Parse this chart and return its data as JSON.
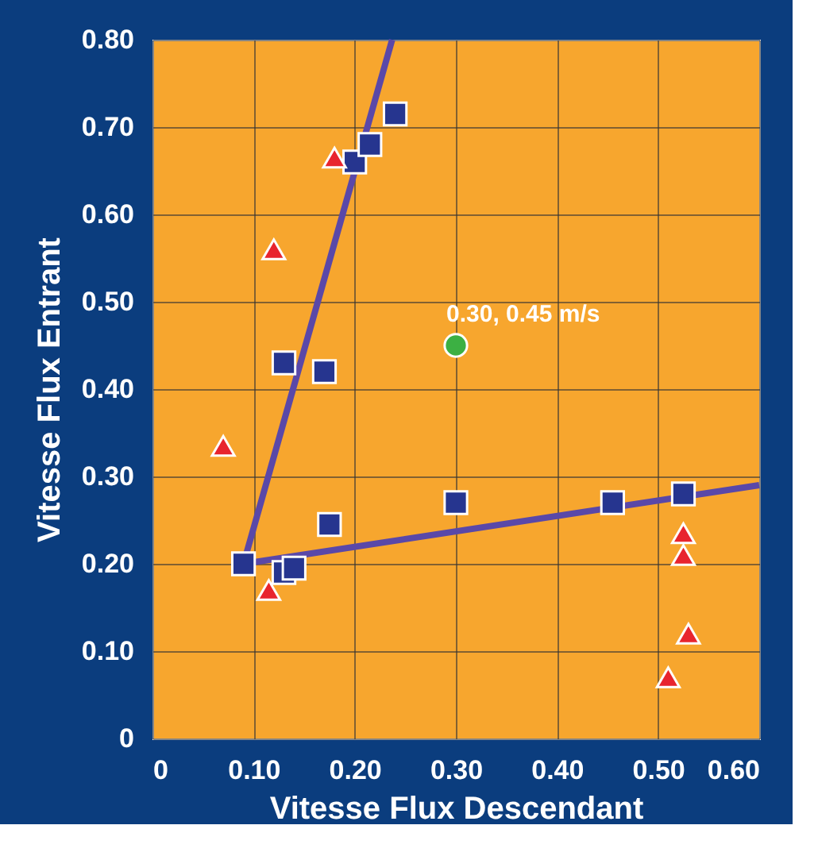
{
  "chart_data": {
    "type": "scatter",
    "xlabel": "Vitesse Flux Descendant",
    "ylabel": "Vitesse Flux Entrant",
    "xlim": [
      0,
      0.6
    ],
    "ylim": [
      0,
      0.8
    ],
    "xticks": [
      0,
      {
        "value": 0.1,
        "label": "0.10"
      },
      {
        "value": 0.2,
        "label": "0.20"
      },
      {
        "value": 0.3,
        "label": "0.30"
      },
      {
        "value": 0.4,
        "label": "0.40"
      },
      {
        "value": 0.5,
        "label": "0.50"
      },
      {
        "value": 0.6,
        "label": "0.60"
      }
    ],
    "yticks": [
      0,
      {
        "value": 0.1,
        "label": "0.10"
      },
      {
        "value": 0.2,
        "label": "0.20"
      },
      {
        "value": 0.3,
        "label": "0.30"
      },
      {
        "value": 0.4,
        "label": "0.40"
      },
      {
        "value": 0.5,
        "label": "0.50"
      },
      {
        "value": 0.6,
        "label": "0.60"
      },
      {
        "value": 0.7,
        "label": "0.70"
      },
      {
        "value": 0.8,
        "label": "0.80"
      }
    ],
    "grid": true,
    "series": [
      {
        "type": "line",
        "color": "#5a48a8",
        "x": [
          0.09,
          0.237
        ],
        "values": [
          0.2,
          0.8
        ]
      },
      {
        "type": "line",
        "color": "#5a48a8",
        "x": [
          0.09,
          0.6
        ],
        "values": [
          0.2,
          0.29
        ]
      },
      {
        "marker": "square",
        "color": "#26358f",
        "x": [
          0.09,
          0.13,
          0.17,
          0.175,
          0.13,
          0.14,
          0.2,
          0.215,
          0.24,
          0.3,
          0.455,
          0.525
        ],
        "values": [
          0.2,
          0.43,
          0.42,
          0.245,
          0.19,
          0.195,
          0.66,
          0.68,
          0.715,
          0.27,
          0.27,
          0.28
        ]
      },
      {
        "marker": "triangle",
        "color": "#e8242e",
        "x": [
          0.07,
          0.12,
          0.18,
          0.115,
          0.525,
          0.525,
          0.53,
          0.51
        ],
        "values": [
          0.335,
          0.56,
          0.665,
          0.17,
          0.235,
          0.21,
          0.12,
          0.07
        ]
      },
      {
        "marker": "circle",
        "color": "#3cb043",
        "x": [
          0.3
        ],
        "values": [
          0.45
        ]
      }
    ],
    "annotations": [
      {
        "text": "0.30, 0.45 m/s",
        "x": 0.3,
        "y": 0.45
      }
    ]
  }
}
